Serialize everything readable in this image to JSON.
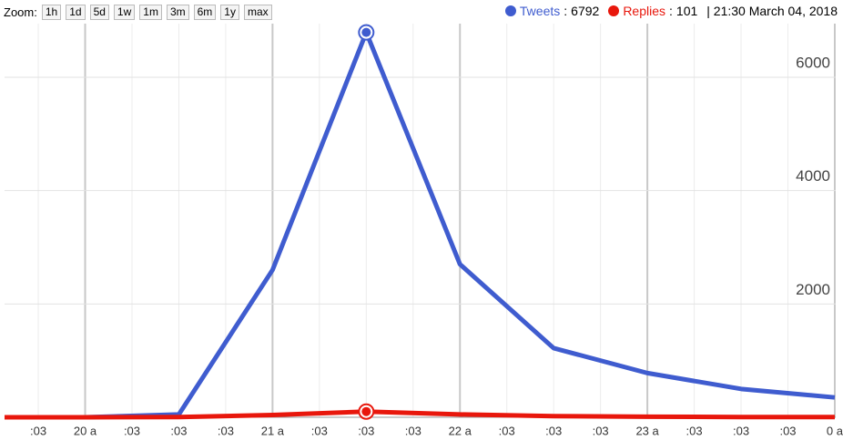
{
  "zoom": {
    "label": "Zoom:",
    "buttons": [
      "1h",
      "1d",
      "5d",
      "1w",
      "1m",
      "3m",
      "6m",
      "1y",
      "max"
    ]
  },
  "readout": {
    "separator": ":",
    "date": "| 21:30 March 04, 2018"
  },
  "chart_data": {
    "type": "line",
    "x": [
      -1,
      1,
      3,
      5,
      7,
      9,
      11,
      13,
      15,
      17
    ],
    "series": [
      {
        "name": "Tweets",
        "color": "#3f5ccf",
        "values": [
          0,
          0,
          50,
          2600,
          6792,
          2700,
          1220,
          780,
          500,
          350
        ]
      },
      {
        "name": "Replies",
        "color": "#e8170c",
        "values": [
          0,
          0,
          5,
          40,
          101,
          50,
          20,
          10,
          5,
          5
        ]
      }
    ],
    "xlim": [
      -0.72,
      17.02
    ],
    "xticks": [
      {
        "value": 0,
        "label": ":03"
      },
      {
        "value": 1,
        "label": "20 a"
      },
      {
        "value": 2,
        "label": ":03"
      },
      {
        "value": 3,
        "label": ":03"
      },
      {
        "value": 4,
        "label": ":03"
      },
      {
        "value": 5,
        "label": "21 a"
      },
      {
        "value": 6,
        "label": ":03"
      },
      {
        "value": 7,
        "label": ":03"
      },
      {
        "value": 8,
        "label": ":03"
      },
      {
        "value": 9,
        "label": "22 a"
      },
      {
        "value": 10,
        "label": ":03"
      },
      {
        "value": 11,
        "label": ":03"
      },
      {
        "value": 12,
        "label": ":03"
      },
      {
        "value": 13,
        "label": "23 a"
      },
      {
        "value": 14,
        "label": ":03"
      },
      {
        "value": 15,
        "label": ":03"
      },
      {
        "value": 16,
        "label": ":03"
      },
      {
        "value": 17,
        "label": "0 a"
      }
    ],
    "ylim": [
      0,
      6850
    ],
    "yticks": [
      2000,
      4000,
      6000
    ],
    "grid": true
  }
}
